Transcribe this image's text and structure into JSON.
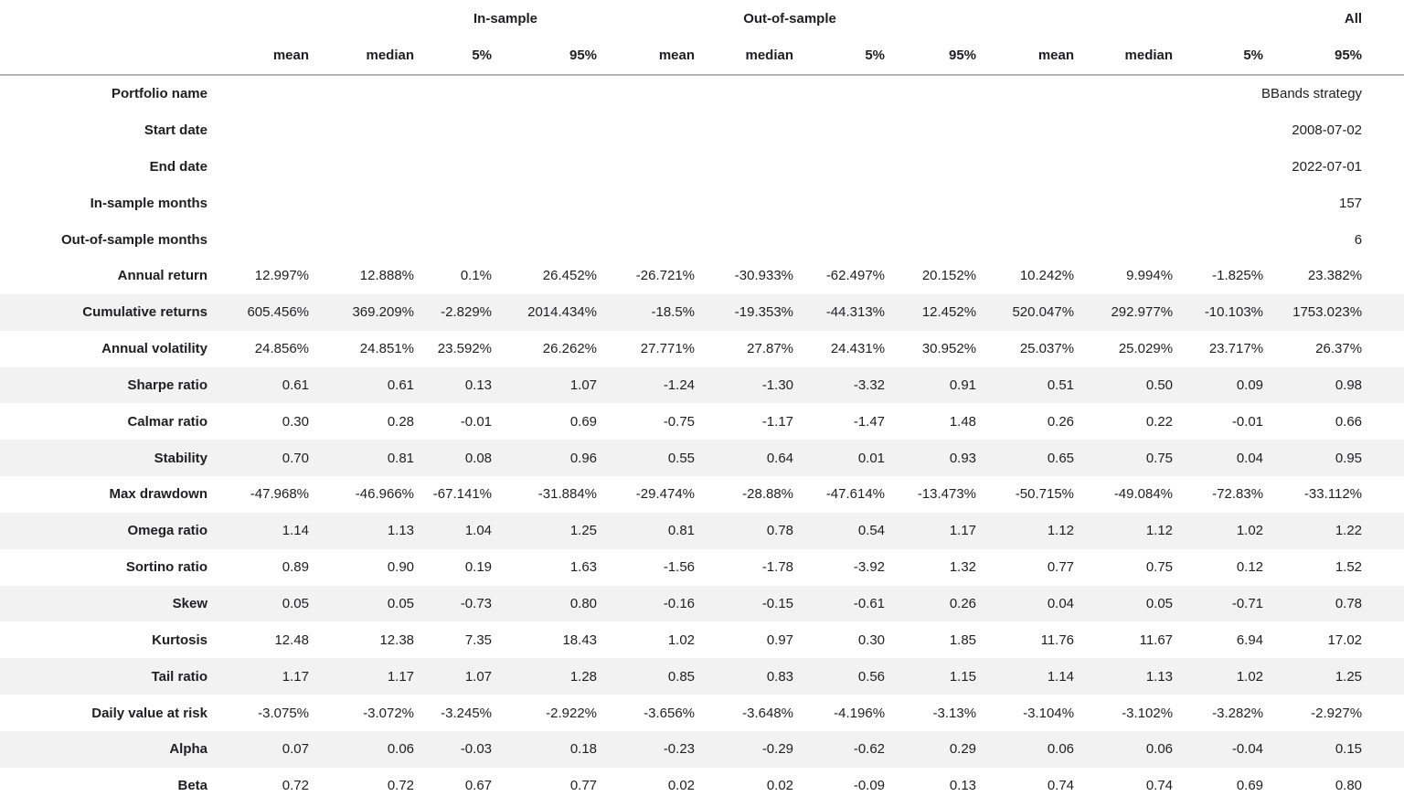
{
  "meta": {
    "rows": [
      {
        "label": "Portfolio name",
        "value": "BBands strategy"
      },
      {
        "label": "Start date",
        "value": "2008-07-02"
      },
      {
        "label": "End date",
        "value": "2022-07-01"
      },
      {
        "label": "In-sample months",
        "value": "157"
      },
      {
        "label": "Out-of-sample months",
        "value": "6"
      }
    ]
  },
  "table": {
    "groups": [
      {
        "label": "In-sample"
      },
      {
        "label": "Out-of-sample"
      },
      {
        "label": "All"
      }
    ],
    "sub_headers": [
      "mean",
      "median",
      "5%",
      "95%",
      "mean",
      "median",
      "5%",
      "95%",
      "mean",
      "median",
      "5%",
      "95%"
    ],
    "rows": [
      {
        "label": "Annual return",
        "values": [
          "12.997%",
          "12.888%",
          "0.1%",
          "26.452%",
          "-26.721%",
          "-30.933%",
          "-62.497%",
          "20.152%",
          "10.242%",
          "9.994%",
          "-1.825%",
          "23.382%"
        ]
      },
      {
        "label": "Cumulative returns",
        "values": [
          "605.456%",
          "369.209%",
          "-2.829%",
          "2014.434%",
          "-18.5%",
          "-19.353%",
          "-44.313%",
          "12.452%",
          "520.047%",
          "292.977%",
          "-10.103%",
          "1753.023%"
        ]
      },
      {
        "label": "Annual volatility",
        "values": [
          "24.856%",
          "24.851%",
          "23.592%",
          "26.262%",
          "27.771%",
          "27.87%",
          "24.431%",
          "30.952%",
          "25.037%",
          "25.029%",
          "23.717%",
          "26.37%"
        ]
      },
      {
        "label": "Sharpe ratio",
        "values": [
          "0.61",
          "0.61",
          "0.13",
          "1.07",
          "-1.24",
          "-1.30",
          "-3.32",
          "0.91",
          "0.51",
          "0.50",
          "0.09",
          "0.98"
        ]
      },
      {
        "label": "Calmar ratio",
        "values": [
          "0.30",
          "0.28",
          "-0.01",
          "0.69",
          "-0.75",
          "-1.17",
          "-1.47",
          "1.48",
          "0.26",
          "0.22",
          "-0.01",
          "0.66"
        ]
      },
      {
        "label": "Stability",
        "values": [
          "0.70",
          "0.81",
          "0.08",
          "0.96",
          "0.55",
          "0.64",
          "0.01",
          "0.93",
          "0.65",
          "0.75",
          "0.04",
          "0.95"
        ]
      },
      {
        "label": "Max drawdown",
        "values": [
          "-47.968%",
          "-46.966%",
          "-67.141%",
          "-31.884%",
          "-29.474%",
          "-28.88%",
          "-47.614%",
          "-13.473%",
          "-50.715%",
          "-49.084%",
          "-72.83%",
          "-33.112%"
        ]
      },
      {
        "label": "Omega ratio",
        "values": [
          "1.14",
          "1.13",
          "1.04",
          "1.25",
          "0.81",
          "0.78",
          "0.54",
          "1.17",
          "1.12",
          "1.12",
          "1.02",
          "1.22"
        ]
      },
      {
        "label": "Sortino ratio",
        "values": [
          "0.89",
          "0.90",
          "0.19",
          "1.63",
          "-1.56",
          "-1.78",
          "-3.92",
          "1.32",
          "0.77",
          "0.75",
          "0.12",
          "1.52"
        ]
      },
      {
        "label": "Skew",
        "values": [
          "0.05",
          "0.05",
          "-0.73",
          "0.80",
          "-0.16",
          "-0.15",
          "-0.61",
          "0.26",
          "0.04",
          "0.05",
          "-0.71",
          "0.78"
        ]
      },
      {
        "label": "Kurtosis",
        "values": [
          "12.48",
          "12.38",
          "7.35",
          "18.43",
          "1.02",
          "0.97",
          "0.30",
          "1.85",
          "11.76",
          "11.67",
          "6.94",
          "17.02"
        ]
      },
      {
        "label": "Tail ratio",
        "values": [
          "1.17",
          "1.17",
          "1.07",
          "1.28",
          "0.85",
          "0.83",
          "0.56",
          "1.15",
          "1.14",
          "1.13",
          "1.02",
          "1.25"
        ]
      },
      {
        "label": "Daily value at risk",
        "values": [
          "-3.075%",
          "-3.072%",
          "-3.245%",
          "-2.922%",
          "-3.656%",
          "-3.648%",
          "-4.196%",
          "-3.13%",
          "-3.104%",
          "-3.102%",
          "-3.282%",
          "-2.927%"
        ]
      },
      {
        "label": "Alpha",
        "values": [
          "0.07",
          "0.06",
          "-0.03",
          "0.18",
          "-0.23",
          "-0.29",
          "-0.62",
          "0.29",
          "0.06",
          "0.06",
          "-0.04",
          "0.15"
        ]
      },
      {
        "label": "Beta",
        "values": [
          "0.72",
          "0.72",
          "0.67",
          "0.77",
          "0.02",
          "0.02",
          "-0.09",
          "0.13",
          "0.74",
          "0.74",
          "0.69",
          "0.80"
        ]
      }
    ]
  },
  "colors": {
    "background": "#ffffff",
    "stripe": "#f2f2f3",
    "header_border": "#b3b3b3",
    "text": "#1f1f21"
  }
}
